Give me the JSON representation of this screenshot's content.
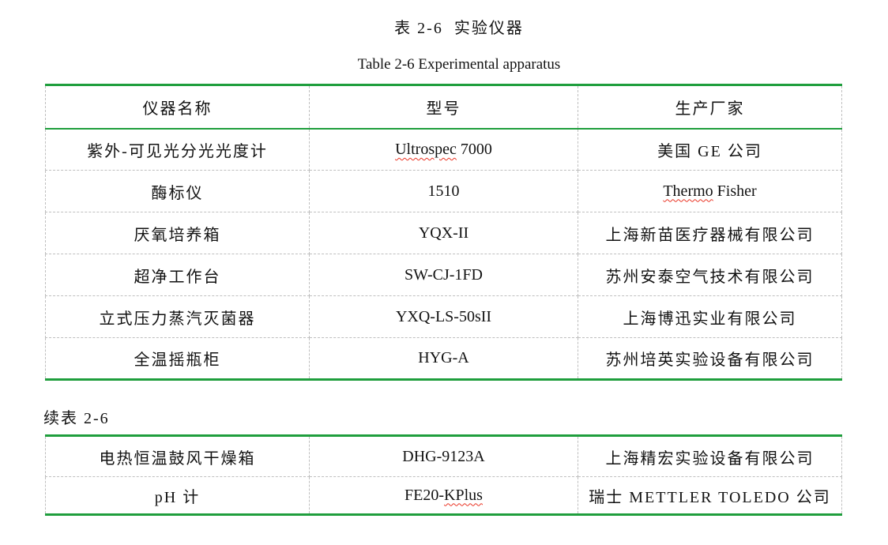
{
  "document": {
    "title_cn": "表 2-6  实验仪器",
    "title_en": "Table 2-6 Experimental apparatus",
    "continuation_label": "续表 2-6"
  },
  "colors": {
    "table_border_green": "#1f9e3d",
    "grid_line_gray": "#bfbfbf",
    "spellcheck_red": "#ea3323",
    "text": "#121212",
    "background": "#ffffff"
  },
  "main_table": {
    "headers": [
      {
        "label": "仪器名称"
      },
      {
        "label": "型号"
      },
      {
        "label": "生产厂家"
      }
    ],
    "rows": [
      {
        "cells": [
          {
            "text": "紫外-可见光分光光度计"
          },
          {
            "parts": [
              {
                "text": "Ultrospec",
                "squiggle": true
              },
              {
                "text": " 7000",
                "squiggle": false
              }
            ]
          },
          {
            "text": "美国 GE 公司"
          }
        ]
      },
      {
        "cells": [
          {
            "text": "酶标仪"
          },
          {
            "text": "1510"
          },
          {
            "parts": [
              {
                "text": "Thermo",
                "squiggle": true
              },
              {
                "text": " Fisher",
                "squiggle": false
              }
            ]
          }
        ]
      },
      {
        "cells": [
          {
            "text": "厌氧培养箱"
          },
          {
            "text": "YQX-II",
            "bold": true
          },
          {
            "text": "上海新苗医疗器械有限公司"
          }
        ]
      },
      {
        "cells": [
          {
            "text": "超净工作台"
          },
          {
            "text": "SW-CJ-1FD",
            "bold": true
          },
          {
            "text": "苏州安泰空气技术有限公司"
          }
        ]
      },
      {
        "cells": [
          {
            "text": "立式压力蒸汽灭菌器"
          },
          {
            "text": "YXQ-LS-50sII",
            "bold": true
          },
          {
            "text": "上海博迅实业有限公司"
          }
        ]
      },
      {
        "cells": [
          {
            "text": "全温摇瓶柜"
          },
          {
            "text": "HYG-A",
            "bold": true
          },
          {
            "text": "苏州培英实验设备有限公司"
          }
        ]
      }
    ]
  },
  "continuation_table": {
    "rows": [
      {
        "cells": [
          {
            "text": "电热恒温鼓风干燥箱",
            "align": "left"
          },
          {
            "text": "DHG-9123A"
          },
          {
            "text": "上海精宏实验设备有限公司"
          }
        ]
      },
      {
        "cells": [
          {
            "text": "pH 计"
          },
          {
            "parts": [
              {
                "text": "FE20-",
                "squiggle": false
              },
              {
                "text": "KPlus",
                "squiggle": true
              }
            ]
          },
          {
            "text": "瑞士 METTLER TOLEDO 公司"
          }
        ]
      }
    ]
  }
}
